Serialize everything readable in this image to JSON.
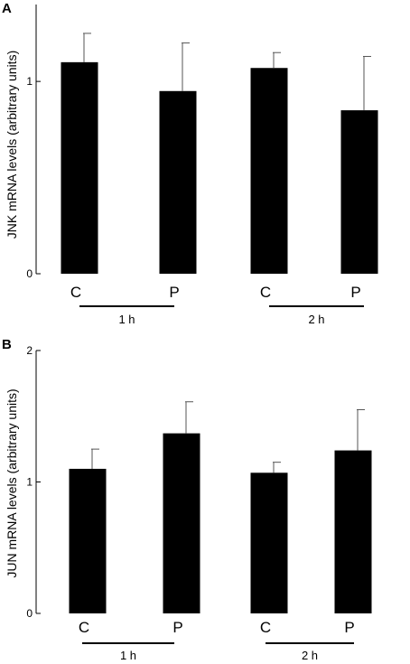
{
  "chart_data": [
    {
      "panel": "A",
      "type": "bar",
      "ylabel": "JNK mRNA levels (arbitrary units)",
      "yticks": [
        0,
        1
      ],
      "ylim": [
        0,
        1.4
      ],
      "categories": [
        "C",
        "P",
        "C",
        "P"
      ],
      "groups": [
        {
          "label": "1 h",
          "categories": [
            0,
            1
          ]
        },
        {
          "label": "2 h",
          "categories": [
            2,
            3
          ]
        }
      ],
      "values": [
        1.1,
        0.95,
        1.07,
        0.85
      ],
      "errors": [
        0.15,
        0.25,
        0.08,
        0.28
      ],
      "bar_color": "#000000"
    },
    {
      "panel": "B",
      "type": "bar",
      "ylabel": "JUN mRNA levels (arbitrary units)",
      "yticks": [
        0,
        1,
        2
      ],
      "ylim": [
        0,
        2
      ],
      "categories": [
        "C",
        "P",
        "C",
        "P"
      ],
      "groups": [
        {
          "label": "1 h",
          "categories": [
            0,
            1
          ]
        },
        {
          "label": "2 h",
          "categories": [
            2,
            3
          ]
        }
      ],
      "values": [
        1.1,
        1.37,
        1.07,
        1.24
      ],
      "errors": [
        0.15,
        0.24,
        0.08,
        0.31
      ],
      "bar_color": "#000000"
    }
  ]
}
